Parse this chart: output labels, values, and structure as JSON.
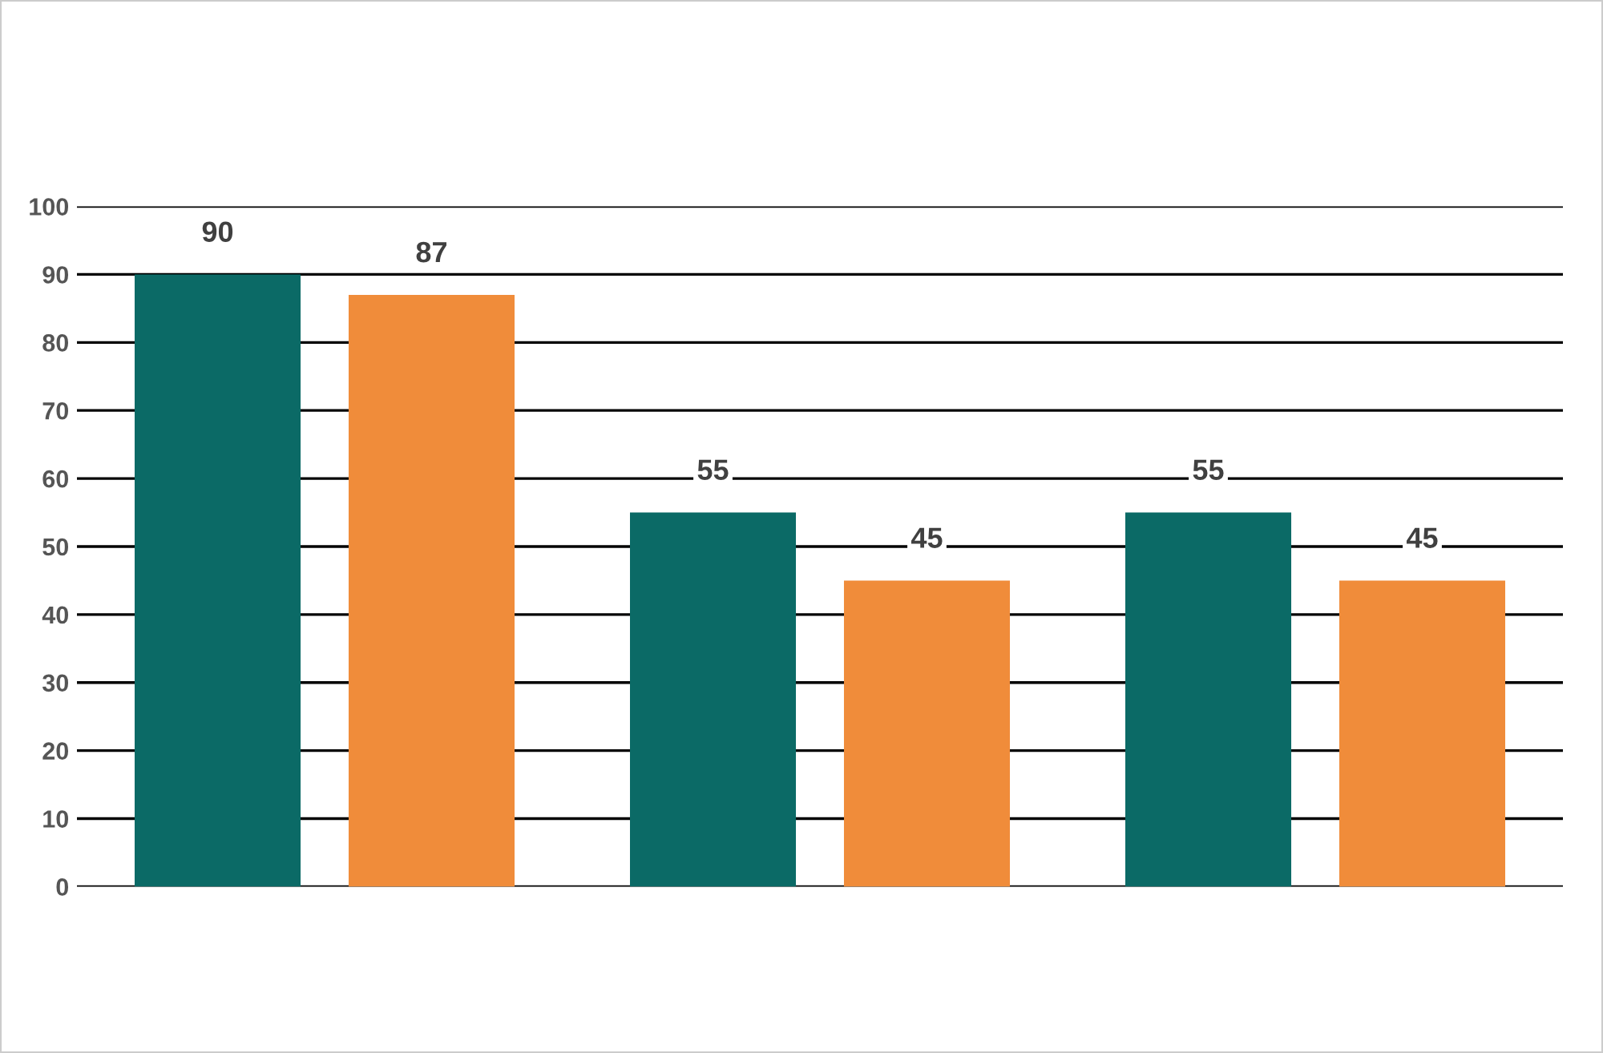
{
  "chart_data": {
    "type": "bar",
    "categories": [
      null,
      null,
      null
    ],
    "series": [
      {
        "color": "#0b6a66",
        "values": [
          90,
          55,
          55
        ]
      },
      {
        "color": "#f08c3a",
        "values": [
          87,
          45,
          45
        ]
      }
    ],
    "ylim": [
      0,
      100
    ],
    "yticks": [
      0,
      10,
      20,
      30,
      40,
      50,
      60,
      70,
      80,
      90,
      100
    ],
    "grid": "y",
    "data_labels": true,
    "legend": false
  }
}
